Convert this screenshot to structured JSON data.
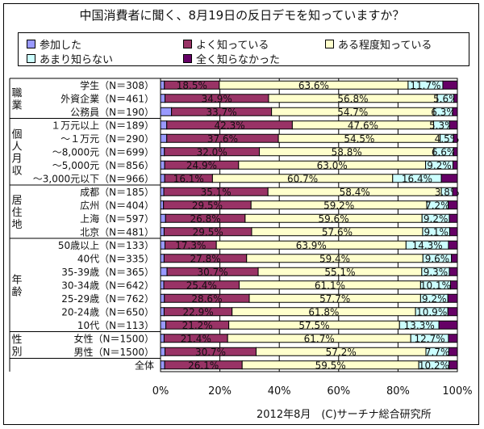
{
  "chart_data": {
    "type": "bar",
    "orientation": "horizontal",
    "stacked": true,
    "title": "中国消費者に聞く、8月19日の反日デモを知っていますか？",
    "footer": "2012年8月　(C)サーチナ総合研究所",
    "xlim": [
      0,
      100
    ],
    "xticks": [
      "0%",
      "20%",
      "40%",
      "60%",
      "80%",
      "100%"
    ],
    "legend_position": "top",
    "series": [
      {
        "name": "参加した",
        "color": "#9999ff"
      },
      {
        "name": "よく知っている",
        "color": "#993366"
      },
      {
        "name": "ある程度知っている",
        "color": "#ffffcc"
      },
      {
        "name": "あまり知らない",
        "color": "#ccffff"
      },
      {
        "name": "全く知らなかった",
        "color": "#660066"
      }
    ],
    "groups": [
      {
        "label": "職業",
        "start": 0,
        "end": 2
      },
      {
        "label": "個人月収",
        "start": 3,
        "end": 7
      },
      {
        "label": "居住地",
        "start": 8,
        "end": 11
      },
      {
        "label": "年齢",
        "start": 12,
        "end": 18
      },
      {
        "label": "性別",
        "start": 19,
        "end": 20
      }
    ],
    "rows": [
      {
        "label": "学生（N＝308）",
        "values": [
          1.3,
          18.5,
          63.6,
          11.7,
          4.9
        ],
        "labels": [
          "",
          "18.5%",
          "63.6%",
          "11.7%",
          ""
        ]
      },
      {
        "label": "外資企業（N＝461）",
        "values": [
          1.5,
          34.9,
          56.8,
          5.6,
          1.2
        ],
        "labels": [
          "",
          "34.9%",
          "56.8%",
          "5.6%",
          ""
        ]
      },
      {
        "label": "公務員（N＝190）",
        "values": [
          3.7,
          33.7,
          54.7,
          6.3,
          1.6
        ],
        "labels": [
          "",
          "33.7%",
          "54.7%",
          "6.3%",
          ""
        ]
      },
      {
        "label": "１万元以上（N＝189）",
        "values": [
          2.1,
          42.3,
          47.6,
          5.3,
          2.7
        ],
        "labels": [
          "",
          "42.3%",
          "47.6%",
          "5.3%",
          ""
        ]
      },
      {
        "label": "～１万元（N＝290）",
        "values": [
          2.1,
          37.6,
          54.5,
          4.5,
          1.3
        ],
        "labels": [
          "",
          "37.6%",
          "54.5%",
          "4.5%",
          ""
        ]
      },
      {
        "label": "～8,000元（N＝699）",
        "values": [
          1.3,
          32.0,
          58.8,
          6.6,
          1.3
        ],
        "labels": [
          "",
          "32.0%",
          "58.8%",
          "6.6%",
          ""
        ]
      },
      {
        "label": "～5,000元（N＝856）",
        "values": [
          1.4,
          24.9,
          63.0,
          9.2,
          1.5
        ],
        "labels": [
          "",
          "24.9%",
          "63.0%",
          "9.2%",
          ""
        ]
      },
      {
        "label": "～3,000元以下（N＝966）",
        "values": [
          1.4,
          16.1,
          60.7,
          16.4,
          5.4
        ],
        "labels": [
          "",
          "16.1%",
          "60.7%",
          "16.4%",
          ""
        ]
      },
      {
        "label": "成都（N＝185）",
        "values": [
          1.1,
          35.1,
          58.4,
          3.8,
          1.6
        ],
        "labels": [
          "",
          "35.1%",
          "58.4%",
          "3.8%",
          ""
        ]
      },
      {
        "label": "広州（N＝404）",
        "values": [
          1.0,
          29.5,
          59.2,
          7.2,
          3.1
        ],
        "labels": [
          "",
          "29.5%",
          "59.2%",
          "7.2%",
          ""
        ]
      },
      {
        "label": "上海（N＝597）",
        "values": [
          1.7,
          26.8,
          59.6,
          9.2,
          2.7
        ],
        "labels": [
          "",
          "26.8%",
          "59.6%",
          "9.2%",
          ""
        ]
      },
      {
        "label": "北京（N＝481）",
        "values": [
          1.2,
          29.5,
          57.6,
          9.1,
          2.6
        ],
        "labels": [
          "",
          "29.5%",
          "57.6%",
          "9.1%",
          ""
        ]
      },
      {
        "label": "50歳以上（N＝133）",
        "values": [
          1.5,
          17.3,
          63.9,
          14.3,
          3.0
        ],
        "labels": [
          "",
          "17.3%",
          "63.9%",
          "14.3%",
          ""
        ]
      },
      {
        "label": "40代（N＝335）",
        "values": [
          1.2,
          27.8,
          59.4,
          9.6,
          2.0
        ],
        "labels": [
          "",
          "27.8%",
          "59.4%",
          "9.6%",
          ""
        ]
      },
      {
        "label": "35-39歳（N＝365）",
        "values": [
          2.2,
          30.7,
          55.1,
          9.3,
          2.7
        ],
        "labels": [
          "",
          "30.7%",
          "55.1%",
          "9.3%",
          ""
        ]
      },
      {
        "label": "30-34歳（N＝642）",
        "values": [
          1.1,
          25.4,
          61.1,
          10.1,
          2.3
        ],
        "labels": [
          "",
          "25.4%",
          "61.1%",
          "10.1%",
          ""
        ]
      },
      {
        "label": "25-29歳（N＝762）",
        "values": [
          1.3,
          28.6,
          57.7,
          9.2,
          3.2
        ],
        "labels": [
          "",
          "28.6%",
          "57.7%",
          "9.2%",
          ""
        ]
      },
      {
        "label": "20-24歳（N＝650）",
        "values": [
          1.2,
          22.9,
          61.8,
          10.9,
          3.2
        ],
        "labels": [
          "",
          "22.9%",
          "61.8%",
          "10.9%",
          ""
        ]
      },
      {
        "label": "10代（N＝113）",
        "values": [
          1.8,
          21.2,
          57.5,
          13.3,
          6.2
        ],
        "labels": [
          "",
          "21.2%",
          "57.5%",
          "13.3%",
          ""
        ]
      },
      {
        "label": "女性（N＝1500）",
        "values": [
          1.2,
          21.4,
          61.7,
          12.7,
          3.0
        ],
        "labels": [
          "",
          "21.4%",
          "61.7%",
          "12.7%",
          ""
        ]
      },
      {
        "label": "男性（N＝1500）",
        "values": [
          1.5,
          30.7,
          57.2,
          7.7,
          2.9
        ],
        "labels": [
          "",
          "30.7%",
          "57.2%",
          "7.7%",
          ""
        ]
      },
      {
        "label": "全体",
        "values": [
          1.4,
          26.1,
          59.5,
          10.2,
          2.8
        ],
        "labels": [
          "",
          "26.1%",
          "59.5%",
          "10.2%",
          ""
        ]
      }
    ]
  }
}
